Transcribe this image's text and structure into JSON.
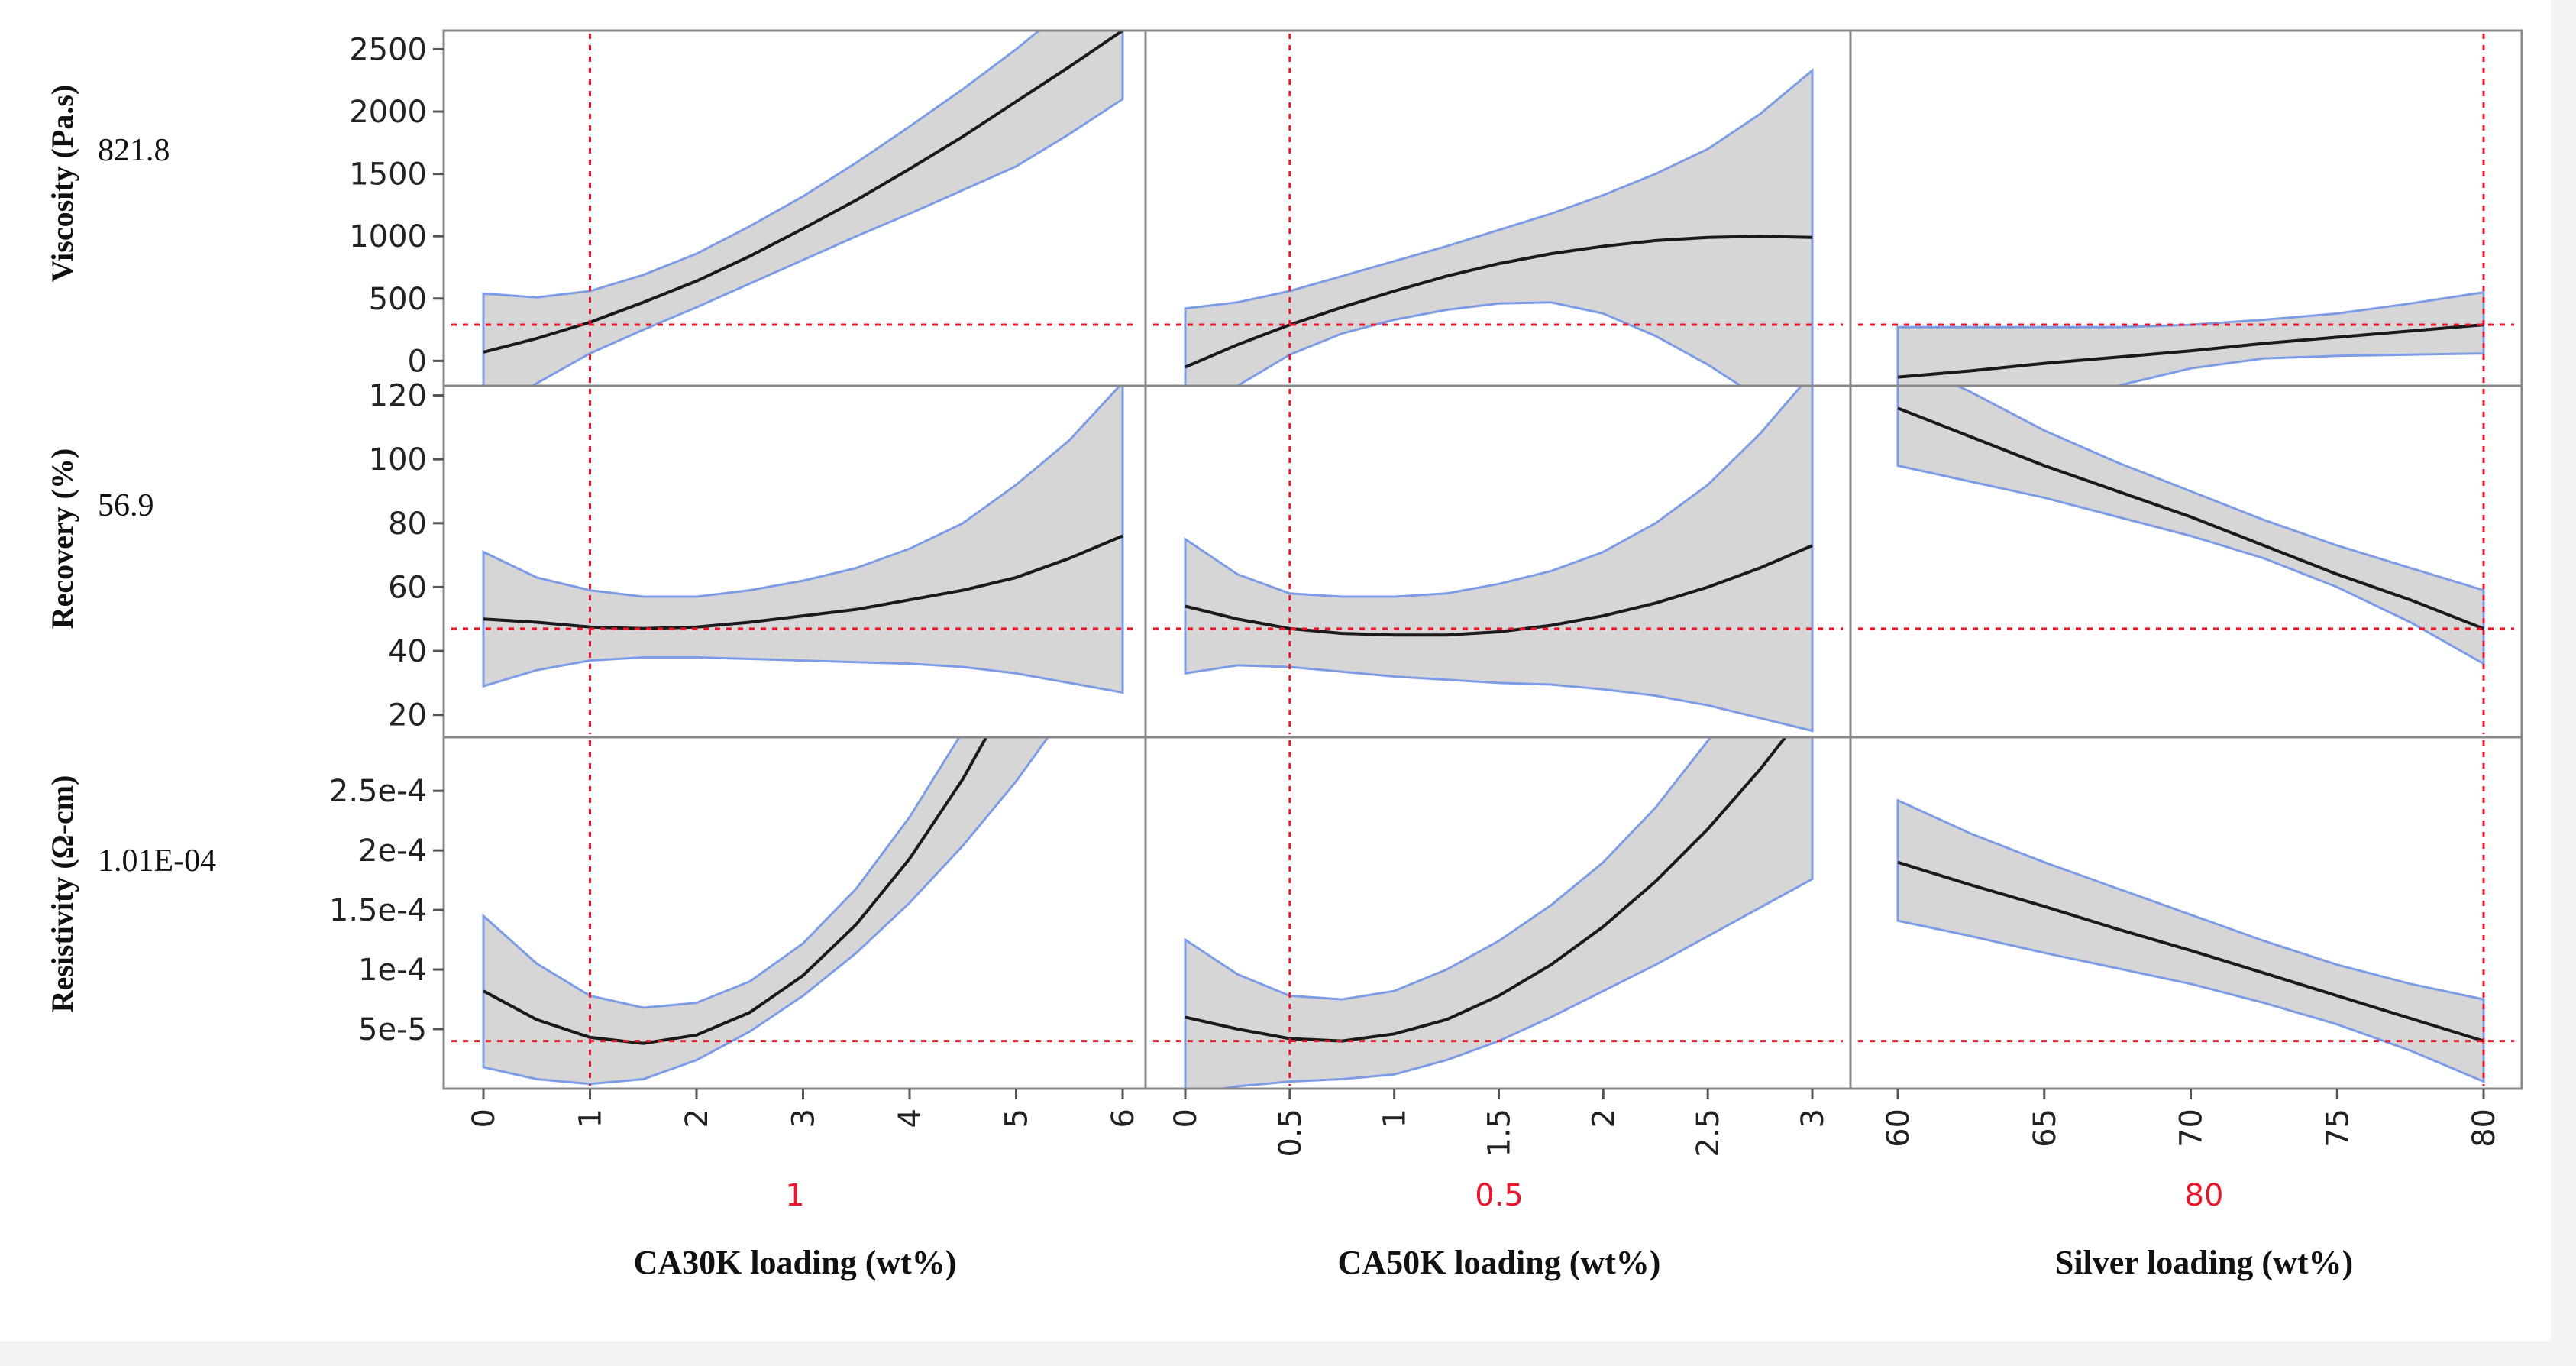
{
  "colors": {
    "band_fill": "#d6d6d6",
    "band_edge": "#7c9ce6",
    "curve": "#1a1a1a",
    "reference": "#e8172b",
    "frame": "#888888"
  },
  "chart_data": {
    "type": "line",
    "title": "",
    "factors": [
      {
        "name": "CA30K loading (wt%)",
        "current_label": "1",
        "current": 1,
        "range": [
          0,
          6
        ],
        "ticks": [
          0,
          1,
          2,
          3,
          4,
          5,
          6
        ],
        "tick_labels": [
          "0",
          "1",
          "2",
          "3",
          "4",
          "5",
          "6"
        ]
      },
      {
        "name": "CA50K loading (wt%)",
        "current_label": "0.5",
        "current": 0.5,
        "range": [
          0,
          3
        ],
        "ticks": [
          0,
          0.5,
          1,
          1.5,
          2,
          2.5,
          3
        ],
        "tick_labels": [
          "0",
          "0.5",
          "1",
          "1.5",
          "2",
          "2.5",
          "3"
        ]
      },
      {
        "name": "Silver loading (wt%)",
        "current_label": "80",
        "current": 80,
        "range": [
          60,
          80
        ],
        "ticks": [
          60,
          65,
          70,
          75,
          80
        ],
        "tick_labels": [
          "60",
          "65",
          "70",
          "75",
          "80"
        ]
      }
    ],
    "responses": [
      {
        "name": "Viscosity (Pa.s)",
        "current_label": "821.8",
        "reference": 290,
        "ylim": [
          -200,
          2650
        ],
        "ticks": [
          0,
          500,
          1000,
          1500,
          2000,
          2500
        ],
        "tick_labels": [
          "0",
          "500",
          "1000",
          "1500",
          "2000",
          "2500"
        ]
      },
      {
        "name": "Recovery (%)",
        "current_label": "56.9",
        "reference": 47,
        "ylim": [
          13,
          123
        ],
        "ticks": [
          20,
          40,
          60,
          80,
          100,
          120
        ],
        "tick_labels": [
          "20",
          "40",
          "60",
          "80",
          "100",
          "120"
        ]
      },
      {
        "name": "Resistivity (Ω-cm)",
        "current_label": "1.01E-04",
        "reference": 4e-05,
        "ylim": [
          0,
          0.000295
        ],
        "ticks": [
          5e-05,
          0.0001,
          0.00015,
          0.0002,
          0.00025
        ],
        "tick_labels": [
          "5e-5",
          "1e-4",
          "1.5e-4",
          "2e-4",
          "2.5e-4"
        ]
      }
    ],
    "cells": [
      [
        {
          "x": [
            0,
            0.5,
            1,
            1.5,
            2,
            2.5,
            3,
            3.5,
            4,
            4.5,
            5,
            5.5,
            6
          ],
          "y": [
            70,
            180,
            310,
            470,
            640,
            840,
            1060,
            1290,
            1540,
            1800,
            2080,
            2360,
            2650
          ],
          "lower": [
            -450,
            -180,
            60,
            250,
            430,
            620,
            810,
            1000,
            1180,
            1370,
            1560,
            1820,
            2100
          ],
          "upper": [
            540,
            510,
            560,
            690,
            860,
            1080,
            1320,
            1590,
            1880,
            2180,
            2500,
            2850,
            3250
          ]
        },
        {
          "x": [
            0,
            0.25,
            0.5,
            0.75,
            1,
            1.25,
            1.5,
            1.75,
            2,
            2.25,
            2.5,
            2.75,
            3
          ],
          "y": [
            -50,
            130,
            290,
            430,
            560,
            680,
            780,
            860,
            920,
            965,
            990,
            1000,
            990
          ],
          "lower": [
            -460,
            -200,
            50,
            220,
            330,
            410,
            460,
            470,
            380,
            200,
            -30,
            -300,
            -680
          ],
          "upper": [
            420,
            470,
            560,
            680,
            800,
            920,
            1050,
            1180,
            1330,
            1500,
            1700,
            1980,
            2330
          ]
        },
        {
          "x": [
            60,
            62.5,
            65,
            67.5,
            70,
            72.5,
            75,
            77.5,
            80
          ],
          "y": [
            -130,
            -80,
            -20,
            30,
            80,
            140,
            190,
            240,
            290
          ],
          "lower": [
            -580,
            -440,
            -330,
            -200,
            -60,
            20,
            40,
            50,
            60
          ],
          "upper": [
            270,
            270,
            270,
            270,
            290,
            330,
            380,
            460,
            550
          ]
        }
      ],
      [
        {
          "x": [
            0,
            0.5,
            1,
            1.5,
            2,
            2.5,
            3,
            3.5,
            4,
            4.5,
            5,
            5.5,
            6
          ],
          "y": [
            50,
            49,
            47.5,
            47,
            47.5,
            49,
            51,
            53,
            56,
            59,
            63,
            69,
            76
          ],
          "lower": [
            29,
            34,
            37,
            38,
            38,
            37.5,
            37,
            36.5,
            36,
            35,
            33,
            30,
            27
          ],
          "upper": [
            71,
            63,
            59,
            57,
            57,
            59,
            62,
            66,
            72,
            80,
            92,
            106,
            124
          ]
        },
        {
          "x": [
            0,
            0.25,
            0.5,
            0.75,
            1,
            1.25,
            1.5,
            1.75,
            2,
            2.25,
            2.5,
            2.75,
            3
          ],
          "y": [
            54,
            50,
            47,
            45.5,
            45,
            45,
            46,
            48,
            51,
            55,
            60,
            66,
            73
          ],
          "lower": [
            33,
            35.5,
            35,
            33.5,
            32,
            31,
            30,
            29.5,
            28,
            26,
            23,
            19,
            15
          ],
          "upper": [
            75,
            64,
            58,
            57,
            57,
            58,
            61,
            65,
            71,
            80,
            92,
            108,
            127
          ]
        },
        {
          "x": [
            60,
            62.5,
            65,
            67.5,
            70,
            72.5,
            75,
            77.5,
            80
          ],
          "y": [
            116,
            107,
            98,
            90,
            82,
            73,
            64,
            56,
            47
          ],
          "lower": [
            98,
            93,
            88,
            82,
            76,
            69,
            60,
            49,
            36
          ],
          "upper": [
            132,
            121,
            109,
            99,
            90,
            81,
            73,
            66,
            59
          ]
        }
      ],
      [
        {
          "x": [
            0,
            0.5,
            1,
            1.5,
            2,
            2.5,
            3,
            3.5,
            4,
            4.5,
            5,
            5.5,
            6
          ],
          "y": [
            8.2e-05,
            5.8e-05,
            4.3e-05,
            3.8e-05,
            4.5e-05,
            6.4e-05,
            9.5e-05,
            0.000138,
            0.000193,
            0.00026,
            0.00034,
            0.00043,
            0.00053
          ],
          "lower": [
            1.8e-05,
            8e-06,
            4e-06,
            8e-06,
            2.4e-05,
            4.8e-05,
            7.8e-05,
            0.000114,
            0.000156,
            0.000204,
            0.000258,
            0.00032,
            0.00039
          ],
          "upper": [
            0.000145,
            0.000105,
            7.8e-05,
            6.8e-05,
            7.2e-05,
            9e-05,
            0.000122,
            0.000168,
            0.000228,
            0.0003,
            0.00038,
            0.00047,
            0.00057
          ]
        },
        {
          "x": [
            0,
            0.25,
            0.5,
            0.75,
            1,
            1.25,
            1.5,
            1.75,
            2,
            2.25,
            2.5,
            2.75,
            3
          ],
          "y": [
            6e-05,
            5e-05,
            4.2e-05,
            4e-05,
            4.6e-05,
            5.8e-05,
            7.8e-05,
            0.000104,
            0.000136,
            0.000174,
            0.000218,
            0.000268,
            0.000324
          ],
          "lower": [
            -5e-06,
            2e-06,
            6e-06,
            8e-06,
            1.2e-05,
            2.4e-05,
            4e-05,
            6e-05,
            8.2e-05,
            0.000104,
            0.000128,
            0.000152,
            0.000176
          ],
          "upper": [
            0.000125,
            9.6e-05,
            7.8e-05,
            7.5e-05,
            8.2e-05,
            0.0001,
            0.000124,
            0.000154,
            0.00019,
            0.000236,
            0.000292,
            0.000354,
            0.00042
          ]
        },
        {
          "x": [
            60,
            62.5,
            65,
            67.5,
            70,
            72.5,
            75,
            77.5,
            80
          ],
          "y": [
            0.00019,
            0.000171,
            0.000153,
            0.000134,
            0.000116,
            9.7e-05,
            7.8e-05,
            5.9e-05,
            4e-05
          ],
          "lower": [
            0.000141,
            0.000128,
            0.000114,
            0.000101,
            8.8e-05,
            7.2e-05,
            5.4e-05,
            3.2e-05,
            6e-06
          ],
          "upper": [
            0.000242,
            0.000214,
            0.00019,
            0.000168,
            0.000146,
            0.000124,
            0.000104,
            8.8e-05,
            7.5e-05
          ]
        }
      ]
    ]
  }
}
